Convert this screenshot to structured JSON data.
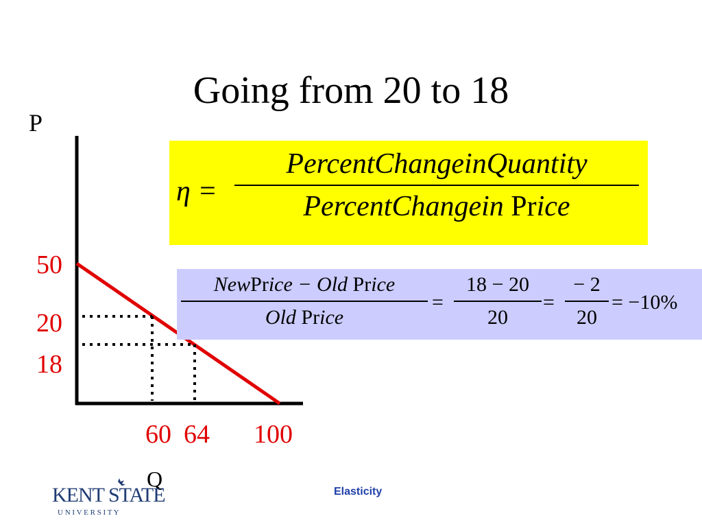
{
  "title": "Going from 20 to 18",
  "footer": "Elasticity",
  "logo": {
    "text": "KENT STATE",
    "subtext": "U N I V E R S I T Y",
    "color": "#1f3b73"
  },
  "formula": {
    "lhs": "η =",
    "numerator": "PercentChangeinQuantity",
    "denominator_italic": "PercentChangein",
    "denominator_roman": "Pr",
    "denominator_tail": "ice",
    "background": "#ffff00"
  },
  "calc": {
    "num_part1": "New",
    "num_part2": "Pr",
    "num_part3": "ice − ",
    "num_part4": "Old",
    "num_part5": " Pr",
    "num_part6": "ice",
    "den_part1": "Old",
    "den_part2": " Pr",
    "den_part3": "ice",
    "eq1": "=",
    "frac2_num": "18 − 20",
    "frac2_den": "20",
    "eq2": "=",
    "frac3_num": "− 2",
    "frac3_den": "20",
    "result": "= −10%",
    "background": "#ccccff"
  },
  "chart_data": {
    "type": "line",
    "ylabel": "P",
    "xlabel": "Q",
    "y_ticks": [
      "50",
      "20",
      "18"
    ],
    "x_ticks": [
      "60",
      "64",
      "100"
    ],
    "series": [
      {
        "points": [
          [
            0,
            50
          ],
          [
            100,
            0
          ]
        ],
        "color": "#e00000"
      }
    ],
    "reference_points": [
      {
        "x": 60,
        "y": 20
      },
      {
        "x": 64,
        "y": 18
      }
    ],
    "colors": {
      "demand": "#e00000",
      "tick_labels": "#e00000",
      "axes": "#000000"
    }
  }
}
